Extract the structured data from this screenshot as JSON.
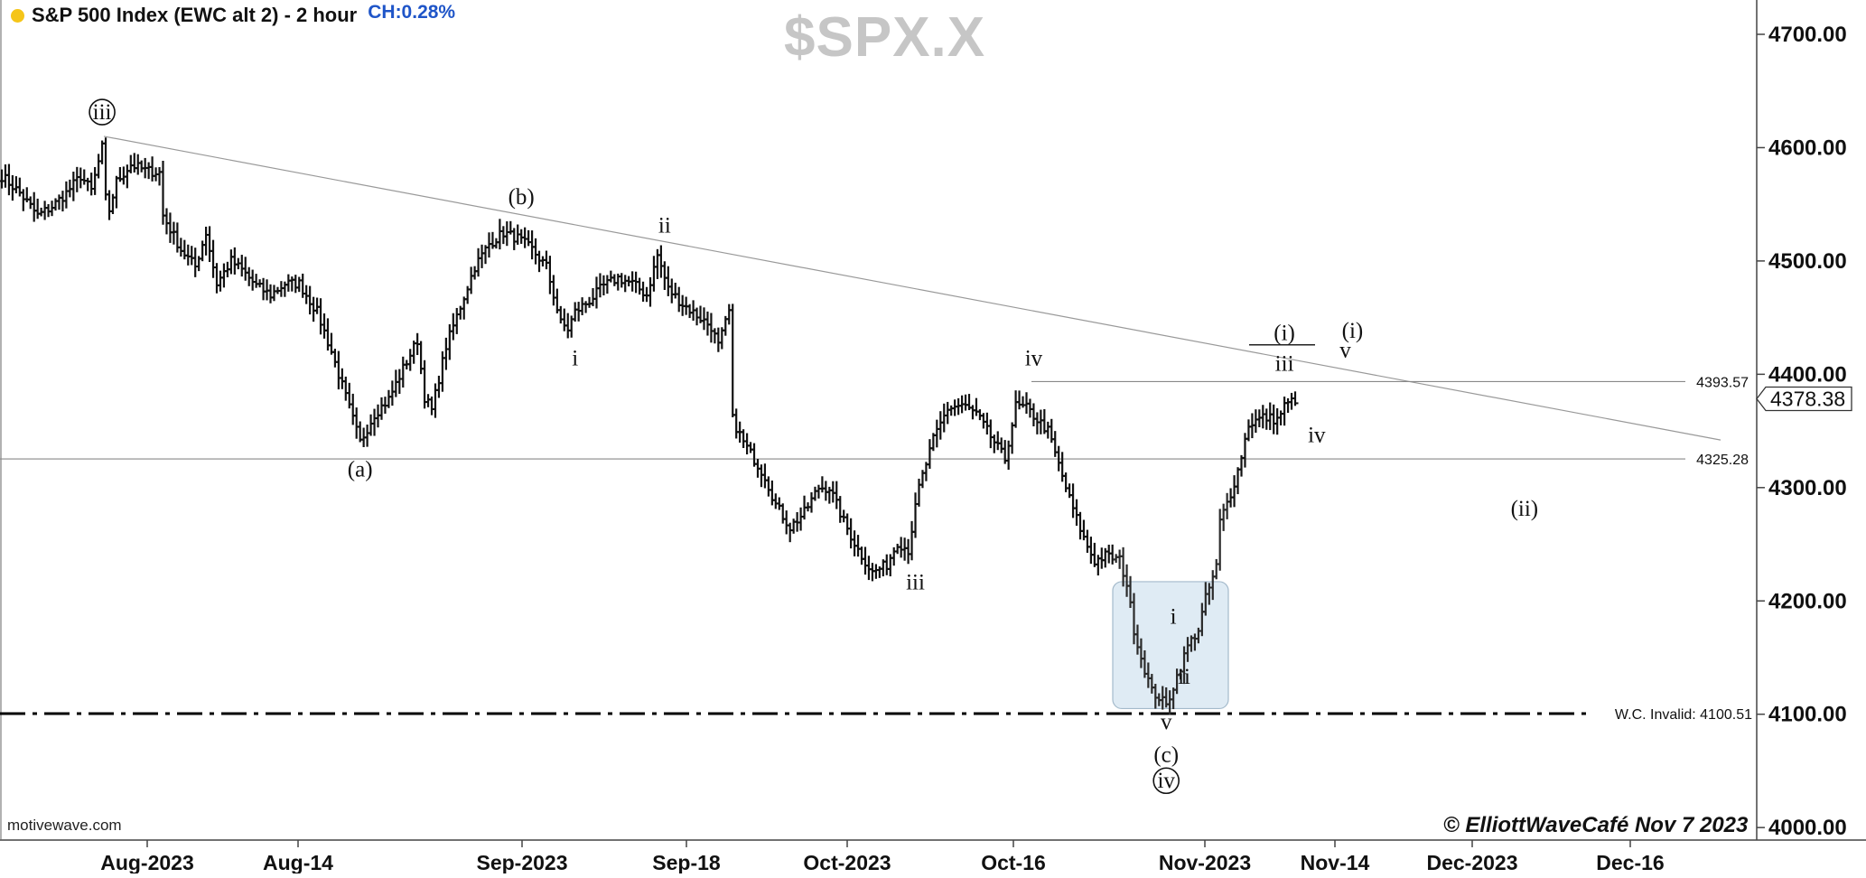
{
  "header": {
    "title": "S&P 500 Index (EWC alt 2) - 2 hour",
    "change": "CH:0.28%",
    "symbol": "$SPX.X"
  },
  "footer": {
    "brand": "motivewave.com",
    "copyright": "© ElliottWaveCafé Nov 7 2023"
  },
  "colors": {
    "status_dot": "#f5c518",
    "change_text": "#1f55c8",
    "symbol_watermark": "#c6c6c6",
    "price_bars": "#111111",
    "highlight_box": "#dce9f3"
  },
  "chart_data": {
    "type": "ohlc",
    "ylim": [
      3968,
      4730
    ],
    "y_ticks": [
      "4000.00",
      "4100.00",
      "4200.00",
      "4300.00",
      "4400.00",
      "4500.00",
      "4600.00",
      "4700.00"
    ],
    "x_ticks": [
      "Aug-2023",
      "Aug-14",
      "Sep-2023",
      "Sep-18",
      "Oct-2023",
      "Oct-16",
      "Nov-2023",
      "Nov-14",
      "Dec-2023",
      "Dec-16"
    ],
    "last_price": "4378.38",
    "path": [
      [
        0,
        4575
      ],
      [
        5,
        4560
      ],
      [
        10,
        4540
      ],
      [
        14,
        4548
      ],
      [
        18,
        4560
      ],
      [
        22,
        4575
      ],
      [
        25,
        4562
      ],
      [
        28,
        4600
      ],
      [
        29,
        4555
      ],
      [
        30,
        4545
      ],
      [
        32,
        4570
      ],
      [
        36,
        4585
      ],
      [
        40,
        4580
      ],
      [
        44,
        4578
      ],
      [
        45,
        4540
      ],
      [
        50,
        4510
      ],
      [
        54,
        4495
      ],
      [
        57,
        4525
      ],
      [
        60,
        4480
      ],
      [
        64,
        4500
      ],
      [
        67,
        4492
      ],
      [
        71,
        4478
      ],
      [
        75,
        4470
      ],
      [
        79,
        4480
      ],
      [
        83,
        4480
      ],
      [
        88,
        4455
      ],
      [
        92,
        4420
      ],
      [
        96,
        4380
      ],
      [
        100,
        4340
      ],
      [
        104,
        4365
      ],
      [
        108,
        4378
      ],
      [
        112,
        4405
      ],
      [
        116,
        4430
      ],
      [
        118,
        4380
      ],
      [
        120,
        4368
      ],
      [
        124,
        4425
      ],
      [
        128,
        4460
      ],
      [
        132,
        4495
      ],
      [
        136,
        4515
      ],
      [
        140,
        4525
      ],
      [
        144,
        4520
      ],
      [
        148,
        4510
      ],
      [
        152,
        4495
      ],
      [
        156,
        4445
      ],
      [
        158,
        4440
      ],
      [
        160,
        4455
      ],
      [
        164,
        4465
      ],
      [
        168,
        4478
      ],
      [
        172,
        4485
      ],
      [
        176,
        4480
      ],
      [
        180,
        4470
      ],
      [
        183,
        4505
      ],
      [
        186,
        4475
      ],
      [
        190,
        4462
      ],
      [
        194,
        4452
      ],
      [
        198,
        4442
      ],
      [
        200,
        4425
      ],
      [
        203,
        4455
      ],
      [
        204,
        4360
      ],
      [
        207,
        4340
      ],
      [
        210,
        4325
      ],
      [
        213,
        4310
      ],
      [
        216,
        4285
      ],
      [
        220,
        4265
      ],
      [
        224,
        4278
      ],
      [
        228,
        4300
      ],
      [
        231,
        4300
      ],
      [
        235,
        4270
      ],
      [
        239,
        4245
      ],
      [
        243,
        4225
      ],
      [
        247,
        4232
      ],
      [
        250,
        4252
      ],
      [
        253,
        4245
      ],
      [
        256,
        4300
      ],
      [
        260,
        4342
      ],
      [
        264,
        4370
      ],
      [
        268,
        4373
      ],
      [
        272,
        4365
      ],
      [
        276,
        4345
      ],
      [
        280,
        4325
      ],
      [
        283,
        4372
      ],
      [
        286,
        4370
      ],
      [
        289,
        4360
      ],
      [
        292,
        4350
      ],
      [
        295,
        4320
      ],
      [
        298,
        4290
      ],
      [
        302,
        4255
      ],
      [
        305,
        4235
      ],
      [
        308,
        4240
      ],
      [
        312,
        4236
      ],
      [
        314,
        4215
      ],
      [
        316,
        4175
      ],
      [
        318,
        4150
      ],
      [
        321,
        4120
      ],
      [
        323,
        4115
      ],
      [
        325,
        4107
      ],
      [
        327,
        4125
      ],
      [
        329,
        4142
      ],
      [
        331,
        4160
      ],
      [
        334,
        4175
      ],
      [
        336,
        4202
      ],
      [
        339,
        4230
      ],
      [
        340,
        4270
      ],
      [
        343,
        4295
      ],
      [
        345,
        4315
      ],
      [
        348,
        4356
      ],
      [
        352,
        4362
      ],
      [
        356,
        4360
      ],
      [
        358,
        4372
      ],
      [
        361,
        4378
      ]
    ],
    "levels": [
      {
        "value": 4393.57,
        "label": "4393.57"
      },
      {
        "value": 4325.28,
        "label": "4325.28"
      },
      {
        "value": 4100.51,
        "label": "W.C. Invalid: 4100.51",
        "style": "dash-dot"
      }
    ],
    "wave_labels": [
      {
        "text": "iii",
        "circled": true,
        "x": 28,
        "y": 4625
      },
      {
        "text": "(a)",
        "x": 100,
        "y": 4310
      },
      {
        "text": "(b)",
        "x": 145,
        "y": 4550
      },
      {
        "text": "i",
        "x": 160,
        "y": 4408
      },
      {
        "text": "ii",
        "x": 185,
        "y": 4525
      },
      {
        "text": "iii",
        "x": 255,
        "y": 4210
      },
      {
        "text": "iv",
        "x": 288,
        "y": 4408
      },
      {
        "text": "i",
        "x": 327,
        "y": 4180
      },
      {
        "text": "ii",
        "x": 330,
        "y": 4127
      },
      {
        "text": "v",
        "x": 325,
        "y": 4087
      },
      {
        "text": "(c)",
        "x": 325,
        "y": 4058
      },
      {
        "text": "iv",
        "circled": true,
        "x": 325,
        "y": 4035
      },
      {
        "text": "iii",
        "x": 358,
        "y": 4403
      },
      {
        "text": "(i)",
        "x": 358,
        "y": 4430
      },
      {
        "text": "(i)",
        "x": 377,
        "y": 4432
      },
      {
        "text": "v",
        "x": 375,
        "y": 4415
      },
      {
        "text": "iv",
        "x": 367,
        "y": 4340
      },
      {
        "text": "(ii)",
        "x": 425,
        "y": 4275
      }
    ]
  }
}
